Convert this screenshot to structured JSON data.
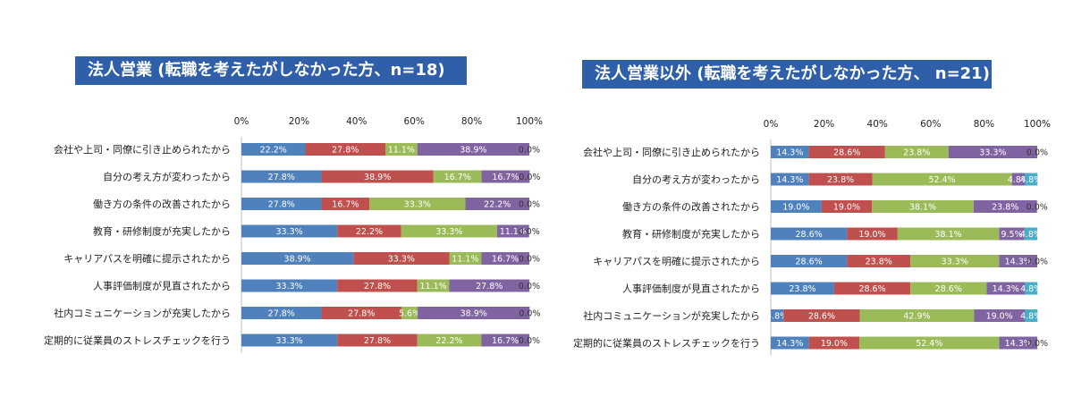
{
  "colors": {
    "title_bg": "#2f5fa8",
    "series": [
      "#4f81bd",
      "#c0504d",
      "#9bbb59",
      "#8064a2",
      "#4bacc6"
    ]
  },
  "chart_data": [
    {
      "type": "bar",
      "orientation": "horizontal-stacked-100",
      "title": "法人営業 (転職を考えたがしなかった方、n=18)",
      "tick_labels": [
        "0%",
        "20%",
        "40%",
        "60%",
        "80%",
        "100%"
      ],
      "xlim": [
        0,
        100
      ],
      "categories": [
        "会社や上司・同僚に引き止められたから",
        "自分の考え方が変わったから",
        "働き方の条件の改善されたから",
        "教育・研修制度が充実したから",
        "キャリアパスを明確に提示されたから",
        "人事評価制度が見直されたから",
        "社内コミュニケーションが充実したから",
        "定期的に従業員のストレスチェックを行う"
      ],
      "series": [
        {
          "values": [
            22.2,
            27.8,
            27.8,
            33.3,
            38.9,
            33.3,
            27.8,
            33.3
          ],
          "labels": [
            "22.2%",
            "27.8%",
            "27.8%",
            "33.3%",
            "38.9%",
            "33.3%",
            "27.8%",
            "33.3%"
          ]
        },
        {
          "values": [
            27.8,
            38.9,
            16.7,
            22.2,
            33.3,
            27.8,
            27.8,
            27.8
          ],
          "labels": [
            "27.8%",
            "38.9%",
            "16.7%",
            "22.2%",
            "33.3%",
            "27.8%",
            "27.8%",
            "27.8%"
          ]
        },
        {
          "values": [
            11.1,
            16.7,
            33.3,
            33.3,
            11.1,
            11.1,
            5.6,
            22.2
          ],
          "labels": [
            "11.1%",
            "16.7%",
            "33.3%",
            "33.3%",
            "11.1%",
            "11.1%",
            "5.6%",
            "22.2%"
          ]
        },
        {
          "values": [
            38.9,
            16.7,
            22.2,
            11.1,
            16.7,
            27.8,
            38.9,
            16.7
          ],
          "labels": [
            "38.9%",
            "16.7%",
            "22.2%",
            "11.1%",
            "16.7%",
            "27.8%",
            "38.9%",
            "16.7%"
          ]
        },
        {
          "values": [
            0,
            0,
            0,
            0,
            0,
            0,
            0,
            0
          ],
          "labels": [
            "0.0%",
            "0.0%",
            "0.0%",
            "0.0%",
            "0.0%",
            "0.0%",
            "0.0%",
            "0.0%"
          ]
        }
      ]
    },
    {
      "type": "bar",
      "orientation": "horizontal-stacked-100",
      "title": "法人営業以外 (転職を考えたがしなかった方、 n=21)",
      "tick_labels": [
        "0%",
        "20%",
        "40%",
        "60%",
        "80%",
        "100%"
      ],
      "xlim": [
        0,
        100
      ],
      "categories": [
        "会社や上司・同僚に引き止められたから",
        "自分の考え方が変わったから",
        "働き方の条件の改善されたから",
        "教育・研修制度が充実したから",
        "キャリアパスを明確に提示されたから",
        "人事評価制度が見直されたから",
        "社内コミュニケーションが充実したから",
        "定期的に従業員のストレスチェックを行う"
      ],
      "series": [
        {
          "values": [
            14.3,
            14.3,
            19.0,
            28.6,
            28.6,
            23.8,
            4.8,
            14.3
          ],
          "labels": [
            "14.3%",
            "14.3%",
            "19.0%",
            "28.6%",
            "28.6%",
            "23.8%",
            "4.8%",
            "14.3%"
          ]
        },
        {
          "values": [
            28.6,
            23.8,
            19.0,
            19.0,
            23.8,
            28.6,
            28.6,
            19.0
          ],
          "labels": [
            "28.6%",
            "23.8%",
            "19.0%",
            "19.0%",
            "23.8%",
            "28.6%",
            "28.6%",
            "19.0%"
          ]
        },
        {
          "values": [
            23.8,
            52.4,
            38.1,
            38.1,
            33.3,
            28.6,
            42.9,
            52.4
          ],
          "labels": [
            "23.8%",
            "52.4%",
            "38.1%",
            "38.1%",
            "33.3%",
            "28.6%",
            "42.9%",
            "52.4%"
          ]
        },
        {
          "values": [
            33.3,
            4.8,
            23.8,
            9.5,
            14.3,
            14.3,
            19.0,
            14.3
          ],
          "labels": [
            "33.3%",
            "4.8%",
            "23.8%",
            "9.5%",
            "14.3%",
            "14.3%",
            "19.0%",
            "14.3%"
          ]
        },
        {
          "values": [
            0,
            4.8,
            0,
            4.8,
            0,
            4.8,
            4.8,
            0
          ],
          "labels": [
            "0.0%",
            "4.8%",
            "0.0%",
            "4.8%",
            "0.0%",
            "4.8%",
            "4.8%",
            "0.0%"
          ]
        }
      ]
    }
  ]
}
